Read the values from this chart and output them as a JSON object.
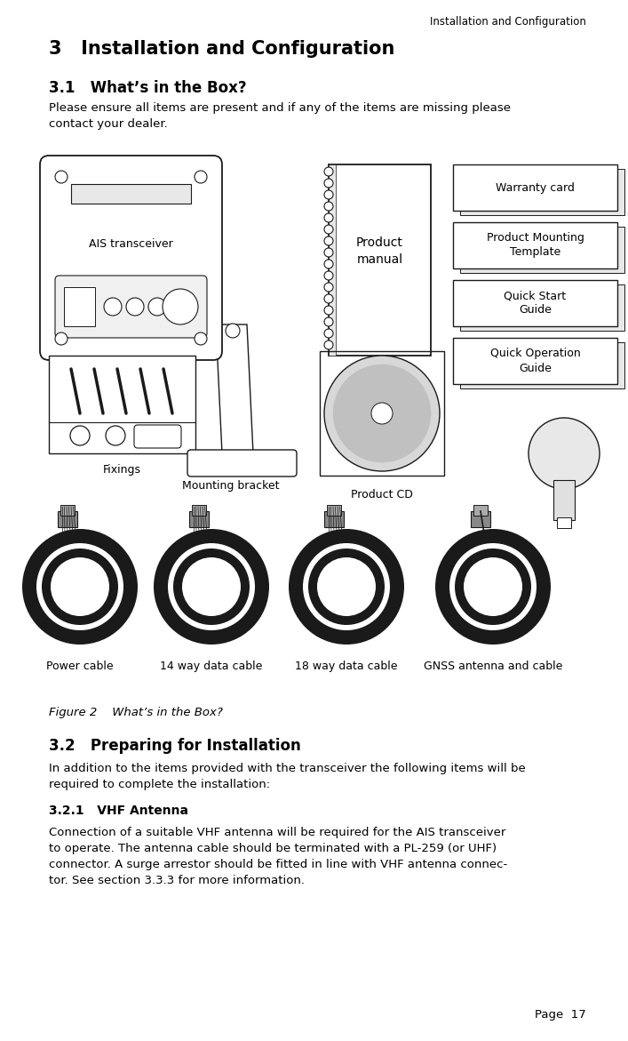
{
  "page_bg": "#ffffff",
  "header_text": "Installation and Configuration",
  "header_font_size": 8.5,
  "chapter_title": "3   Installation and Configuration",
  "chapter_font_size": 15,
  "section_31_title": "3.1   What’s in the Box?",
  "section_31_font_size": 12,
  "section_31_body": "Please ensure all items are present and if any of the items are missing please\ncontact your dealer.",
  "section_31_body_font_size": 9.5,
  "figure_caption_italic": "Figure 2",
  "figure_caption_rest": "     What’s in the Box?",
  "figure_caption_font_size": 9.5,
  "section_32_title": "3.2   Preparing for Installation",
  "section_32_font_size": 12,
  "section_32_body": "In addition to the items provided with the transceiver the following items will be\nrequired to complete the installation:",
  "section_32_body_font_size": 9.5,
  "section_321_title": "3.2.1   VHF Antenna",
  "section_321_font_size": 10,
  "section_321_body": "Connection of a suitable VHF antenna will be required for the AIS transceiver\nto operate. The antenna cable should be terminated with a PL-259 (or UHF)\nconnector. A surge arrestor should be fitted in line with VHF antenna connec-\ntor. See section 3.3.3 for more information.",
  "section_321_body_font_size": 9.5,
  "page_number": "Page  17",
  "page_number_font_size": 9.5,
  "text_color": "#000000",
  "doc_labels": [
    "Warranty card",
    "Product Mounting\nTemplate",
    "Quick Start\nGuide",
    "Quick Operation\nGuide"
  ],
  "items_row2_labels": [
    "Power cable",
    "14 way data cable",
    "18 way data cable",
    "GNSS antenna and cable"
  ],
  "fixings_label": "Fixings",
  "mounting_bracket_label": "Mounting bracket",
  "product_cd_label": "Product CD",
  "ais_label": "AIS transceiver"
}
